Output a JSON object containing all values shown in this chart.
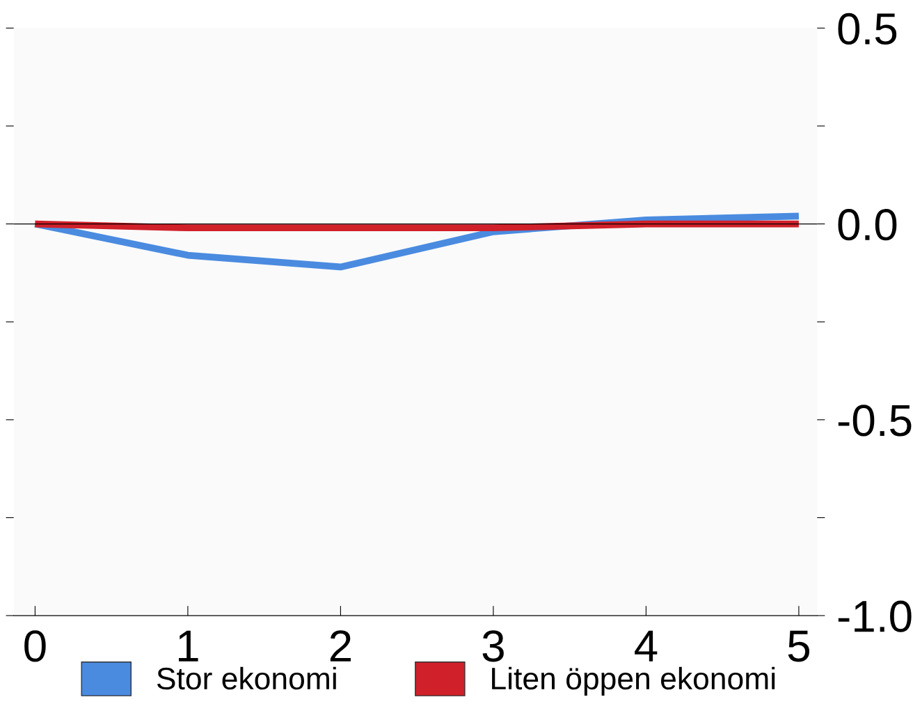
{
  "chart_data": {
    "type": "line",
    "x": [
      0,
      1,
      2,
      3,
      4,
      5
    ],
    "series": [
      {
        "name": "Stor ekonomi",
        "color": "#4a8be0",
        "values": [
          0,
          -0.08,
          -0.11,
          -0.02,
          0.01,
          0.02
        ]
      },
      {
        "name": "Liten öppen ekonomi",
        "color": "#d0202a",
        "values": [
          0,
          -0.01,
          -0.01,
          -0.01,
          0,
          0
        ]
      }
    ],
    "xlim": [
      -0.14,
      5.12
    ],
    "xticks": [
      0,
      1,
      2,
      3,
      4,
      5
    ],
    "ylim": [
      -1.0,
      0.5
    ],
    "yticks": [
      {
        "value": 0.5,
        "label": "0.5"
      },
      {
        "value": 0.25,
        "label": null
      },
      {
        "value": 0,
        "label": "0.0"
      },
      {
        "value": -0.25,
        "label": null
      },
      {
        "value": -0.5,
        "label": "-0.5"
      },
      {
        "value": -0.75,
        "label": null
      },
      {
        "value": -1.0,
        "label": "-1.0"
      }
    ],
    "ref_lines": [
      {
        "axis": "y",
        "value": 0,
        "color": "#000000"
      }
    ],
    "legend": "bottom",
    "grid": false,
    "marker": "none",
    "line_style": "solid"
  }
}
